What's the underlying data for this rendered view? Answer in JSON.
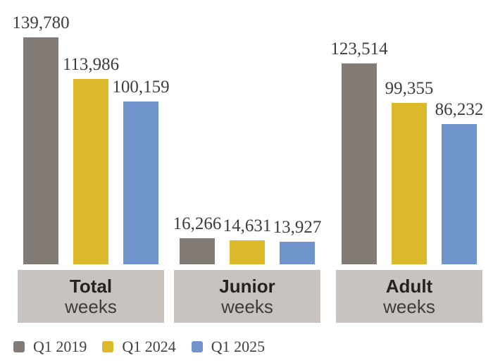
{
  "chart_data": {
    "type": "bar",
    "title": "",
    "xlabel": "",
    "ylabel": "",
    "grid": false,
    "legend_position": "bottom-left",
    "ylim": [
      0,
      139780
    ],
    "axis_lines": false,
    "value_labels_shown": true,
    "categories": [
      "Total weeks",
      "Junior weeks",
      "Adult weeks"
    ],
    "series": [
      {
        "name": "Q1 2019",
        "color": "#817a75",
        "values": [
          139780,
          16266,
          123514
        ]
      },
      {
        "name": "Q1 2024",
        "color": "#dcb92a",
        "values": [
          113986,
          14631,
          99355
        ]
      },
      {
        "name": "Q1 2025",
        "color": "#6e94cb",
        "values": [
          100159,
          13927,
          86232
        ]
      }
    ],
    "groups": [
      {
        "label_bold": "Total",
        "label_regular": "weeks",
        "bars": [
          {
            "series": "Q1 2019",
            "display": "139,780"
          },
          {
            "series": "Q1 2024",
            "display": "113,986"
          },
          {
            "series": "Q1 2025",
            "display": "100,159"
          }
        ]
      },
      {
        "label_bold": "Junior",
        "label_regular": "weeks",
        "bars": [
          {
            "series": "Q1 2019",
            "display": "16,266"
          },
          {
            "series": "Q1 2024",
            "display": "14,631"
          },
          {
            "series": "Q1 2025",
            "display": "13,927"
          }
        ]
      },
      {
        "label_bold": "Adult",
        "label_regular": "weeks",
        "bars": [
          {
            "series": "Q1 2019",
            "display": "123,514"
          },
          {
            "series": "Q1 2024",
            "display": "99,355"
          },
          {
            "series": "Q1 2025",
            "display": "86,232"
          }
        ]
      }
    ]
  },
  "colors": {
    "background": "#ffffff",
    "category_box": "#c9c3bf",
    "value_label_text": "#3d3d3d",
    "category_bold_text": "#262220",
    "category_regular_text": "#3f3b38",
    "legend_text": "#44403d"
  }
}
